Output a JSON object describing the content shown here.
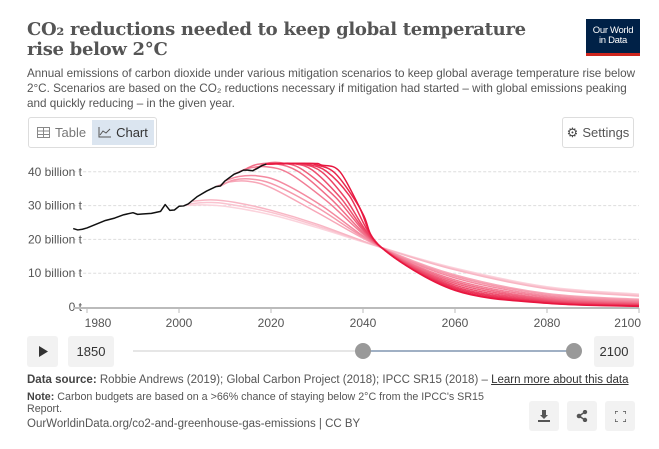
{
  "header": {
    "title": "CO₂ reductions needed to keep global temperature rise below 2°C",
    "subtitle": "Annual emissions of carbon dioxide under various mitigation scenarios to keep global average temperature rise below 2°C. Scenarios are based on the CO₂ reductions necessary if mitigation had started – with global emissions peaking and quickly reducing – in the given year.",
    "logo_line1": "Our World",
    "logo_line2": "in Data"
  },
  "toolbar": {
    "table_label": "Table",
    "chart_label": "Chart",
    "settings_label": "Settings",
    "active_tab": "Chart"
  },
  "timeline": {
    "play_icon": "play-icon",
    "start_label": "1850",
    "end_label": "2100",
    "range_start": 1977,
    "range_end": 2100
  },
  "footer": {
    "source_prefix": "Data source:",
    "source_text": " Robbie Andrews (2019); Global Carbon Project (2018); IPCC SR15 (2018) – ",
    "learn_more": "Learn more about this data",
    "note_prefix": "Note:",
    "note_text": " Carbon budgets are based on a >66% chance of staying below 2°C from the IPCC's SR15 Report.",
    "url": "OurWorldinData.org/co2-and-greenhouse-gas-emissions | CC BY"
  },
  "chart_data": {
    "type": "line",
    "xlim": [
      1977,
      2100
    ],
    "ylim": [
      0,
      42.5
    ],
    "x_ticks": [
      "1980",
      "2000",
      "2020",
      "2040",
      "2060",
      "2080",
      "2100"
    ],
    "y_ticks": [
      "0 t",
      "10 billion t",
      "20 billion t",
      "30 billion t",
      "40 billion t"
    ],
    "grid": "horizontal dashed",
    "colors": {
      "historical": "#111111",
      "scenario_light": "#fbd3dc",
      "scenario_dark": "#e8163f"
    },
    "historical": [
      [
        1977,
        23.2
      ],
      [
        1978,
        22.8
      ],
      [
        1979,
        23
      ],
      [
        1980,
        23.4
      ],
      [
        1982,
        24.5
      ],
      [
        1984,
        25.6
      ],
      [
        1986,
        26.3
      ],
      [
        1988,
        27.3
      ],
      [
        1990,
        27.9
      ],
      [
        1991,
        27.4
      ],
      [
        1992,
        27.5
      ],
      [
        1994,
        27.7
      ],
      [
        1996,
        28.3
      ],
      [
        1997,
        30.3
      ],
      [
        1998,
        28.6
      ],
      [
        1999,
        28.7
      ],
      [
        2000,
        29.8
      ],
      [
        2001,
        29.9
      ],
      [
        2002,
        30.5
      ],
      [
        2004,
        32.7
      ],
      [
        2006,
        34.3
      ],
      [
        2008,
        35.6
      ],
      [
        2009,
        35.8
      ],
      [
        2010,
        37.3
      ],
      [
        2012,
        39.3
      ],
      [
        2013,
        39.8
      ],
      [
        2014,
        40.5
      ],
      [
        2015,
        40.5
      ],
      [
        2016,
        40.3
      ],
      [
        2017,
        41
      ],
      [
        2018,
        41.8
      ],
      [
        2019,
        42.3
      ]
    ],
    "scenarios": [
      [
        [
          2001,
          30
        ],
        [
          2005,
          30.2
        ],
        [
          2010,
          29.8
        ],
        [
          2020,
          27.3
        ],
        [
          2030,
          23.5
        ],
        [
          2044,
          17.6
        ],
        [
          2060,
          11.5
        ],
        [
          2080,
          6
        ],
        [
          2100,
          3.8
        ]
      ],
      [
        [
          2002,
          30.5
        ],
        [
          2006,
          30.9
        ],
        [
          2010,
          30.6
        ],
        [
          2020,
          28
        ],
        [
          2030,
          24
        ],
        [
          2044,
          17.6
        ],
        [
          2060,
          11.2
        ],
        [
          2080,
          5.7
        ],
        [
          2100,
          3.5
        ]
      ],
      [
        [
          2003,
          31.3
        ],
        [
          2007,
          31.7
        ],
        [
          2012,
          31
        ],
        [
          2020,
          28.6
        ],
        [
          2030,
          24.5
        ],
        [
          2044,
          17.6
        ],
        [
          2060,
          11
        ],
        [
          2080,
          5.4
        ],
        [
          2100,
          3.2
        ]
      ],
      [
        [
          2008,
          35.6
        ],
        [
          2011,
          37
        ],
        [
          2015,
          37.2
        ],
        [
          2020,
          35.3
        ],
        [
          2030,
          28
        ],
        [
          2044,
          17.6
        ],
        [
          2060,
          9.5
        ],
        [
          2080,
          4
        ],
        [
          2100,
          2.3
        ]
      ],
      [
        [
          2009,
          35.8
        ],
        [
          2012,
          37.6
        ],
        [
          2016,
          37.8
        ],
        [
          2021,
          36
        ],
        [
          2030,
          29.5
        ],
        [
          2044,
          17.6
        ],
        [
          2060,
          9.1
        ],
        [
          2080,
          3.7
        ],
        [
          2100,
          2
        ]
      ],
      [
        [
          2010,
          37.3
        ],
        [
          2013,
          38.6
        ],
        [
          2017,
          38.8
        ],
        [
          2022,
          37
        ],
        [
          2031,
          30
        ],
        [
          2044,
          17.6
        ],
        [
          2060,
          8.6
        ],
        [
          2080,
          3.3
        ],
        [
          2100,
          1.7
        ]
      ],
      [
        [
          2012,
          39.3
        ],
        [
          2015,
          41
        ],
        [
          2019,
          41.5
        ],
        [
          2024,
          39.5
        ],
        [
          2032,
          31.5
        ],
        [
          2044,
          17.6
        ],
        [
          2060,
          8
        ],
        [
          2080,
          2.9
        ],
        [
          2100,
          1.4
        ]
      ],
      [
        [
          2014,
          40.5
        ],
        [
          2017,
          42.2
        ],
        [
          2021,
          42.4
        ],
        [
          2026,
          40
        ],
        [
          2033,
          32
        ],
        [
          2044,
          17.6
        ],
        [
          2060,
          7.5
        ],
        [
          2080,
          2.5
        ],
        [
          2100,
          1.1
        ]
      ],
      [
        [
          2016,
          40.3
        ],
        [
          2019,
          42.5
        ],
        [
          2023,
          42.5
        ],
        [
          2027,
          40.5
        ],
        [
          2034,
          32.5
        ],
        [
          2044,
          17.6
        ],
        [
          2060,
          7
        ],
        [
          2080,
          2.2
        ],
        [
          2100,
          0.9
        ]
      ],
      [
        [
          2019,
          42.3
        ],
        [
          2022,
          42.5
        ],
        [
          2025,
          42.4
        ],
        [
          2029,
          40.5
        ],
        [
          2035,
          32.5
        ],
        [
          2044,
          17.6
        ],
        [
          2060,
          6.5
        ],
        [
          2080,
          1.9
        ],
        [
          2100,
          0.7
        ]
      ],
      [
        [
          2019,
          42.3
        ],
        [
          2024,
          42.5
        ],
        [
          2027,
          42.2
        ],
        [
          2031,
          40
        ],
        [
          2036,
          32.5
        ],
        [
          2044,
          17.6
        ],
        [
          2060,
          6
        ],
        [
          2080,
          1.6
        ],
        [
          2100,
          0.5
        ]
      ],
      [
        [
          2019,
          42.3
        ],
        [
          2026,
          42.5
        ],
        [
          2028,
          42.2
        ],
        [
          2032,
          40.2
        ],
        [
          2037,
          33
        ],
        [
          2044,
          17.6
        ],
        [
          2060,
          5.6
        ],
        [
          2080,
          1.4
        ],
        [
          2100,
          0.4
        ]
      ],
      [
        [
          2019,
          42.3
        ],
        [
          2027,
          42.5
        ],
        [
          2030,
          42
        ],
        [
          2034,
          39.5
        ],
        [
          2039,
          30
        ],
        [
          2044,
          17.6
        ],
        [
          2060,
          5.2
        ],
        [
          2080,
          1.2
        ],
        [
          2100,
          0.3
        ]
      ],
      [
        [
          2019,
          42.3
        ],
        [
          2029,
          42.5
        ],
        [
          2031,
          42
        ],
        [
          2035,
          40
        ],
        [
          2040,
          27.5
        ],
        [
          2044,
          17.6
        ],
        [
          2060,
          4.9
        ],
        [
          2080,
          1.1
        ],
        [
          2100,
          0.2
        ]
      ]
    ]
  }
}
